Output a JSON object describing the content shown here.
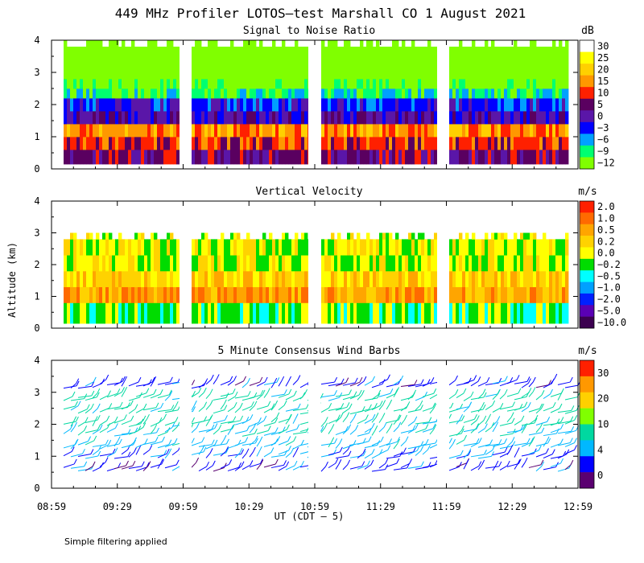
{
  "chart_data": {
    "type": "heatmap",
    "title": "449 MHz Profiler LOTOS–test Marshall CO   1 August 2021",
    "ylabel": "Altitude (km)",
    "xlabel": "UT  (CDT – 5)",
    "x_ticks": [
      "08:59",
      "09:29",
      "09:59",
      "10:29",
      "10:59",
      "11:29",
      "11:59",
      "12:29",
      "12:59"
    ],
    "x_range_ut": [
      "08:59",
      "12:59"
    ],
    "y_ticks": [
      "0",
      "1",
      "2",
      "3",
      "4"
    ],
    "ylim_km": [
      0,
      4
    ],
    "data_gaps_ut": [
      [
        "09:59",
        "10:02"
      ],
      [
        "10:59",
        "11:02"
      ],
      [
        "11:59",
        "12:02"
      ]
    ],
    "panels": [
      {
        "name": "snr",
        "subtitle": "Signal to Noise Ratio",
        "units": "dB",
        "colorbar_labels": [
          "30",
          "25",
          "20",
          "15",
          "10",
          "5",
          "0",
          "−3",
          "−6",
          "−9",
          "−12"
        ],
        "colorbar_colors": [
          "#ffffff",
          "#ffff00",
          "#ffd000",
          "#ff9800",
          "#ff2000",
          "#5a0060",
          "#5a16a8",
          "#0000ff",
          "#00a0ff",
          "#00ff70",
          "#80ff00"
        ],
        "profile_km": [
          0.25,
          0.6,
          1.0,
          1.4,
          1.8,
          2.2,
          2.5,
          2.8,
          3.3,
          3.8
        ],
        "profile_class": [
          5,
          4,
          3,
          6,
          7,
          9,
          10,
          11,
          11,
          11
        ]
      },
      {
        "name": "velocity",
        "subtitle": "Vertical Velocity",
        "units": "m/s",
        "colorbar_labels": [
          "2.0",
          "1.0",
          "0.5",
          "0.2",
          "0.0",
          "−0.2",
          "−0.5",
          "−1.0",
          "−2.0",
          "−5.0",
          "−10.0"
        ],
        "colorbar_colors": [
          "#ff2000",
          "#ff6a00",
          "#ffa500",
          "#ffd200",
          "#ffff00",
          "#00dc00",
          "#00ffff",
          "#00a0ff",
          "#0020ff",
          "#5a00b4",
          "#3c0050"
        ],
        "profile_km": [
          0.3,
          0.8,
          1.3,
          1.8,
          2.3,
          2.8
        ],
        "profile_class": [
          5,
          2,
          3,
          4,
          4,
          4
        ]
      },
      {
        "name": "wind",
        "subtitle": "5 Minute Consensus Wind Barbs",
        "units": "m/s",
        "colorbar_labels": [
          "30",
          "20",
          "10",
          "4",
          "0"
        ],
        "colorbar_colors": [
          "#ff2000",
          "#ff9800",
          "#ffd000",
          "#80ff00",
          "#00d8a0",
          "#00b8ff",
          "#0000ff",
          "#5a0070"
        ],
        "profile_km": [
          0.6,
          1.0,
          1.3,
          1.7,
          2.0,
          2.4,
          2.8,
          3.2
        ],
        "profile_speed_ms": [
          3,
          4,
          6,
          7,
          8,
          8,
          8,
          3
        ]
      }
    ]
  },
  "footer": {
    "note": "Simple filtering applied"
  }
}
